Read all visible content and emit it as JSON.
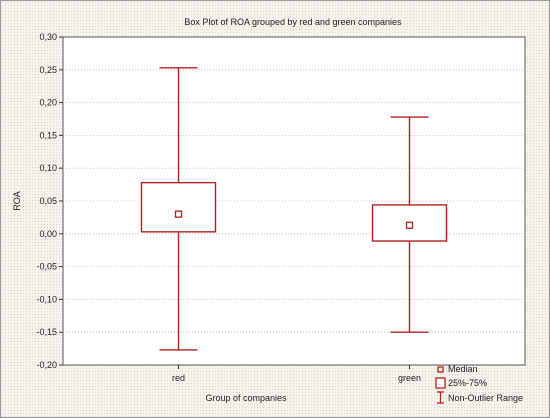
{
  "chart_data": {
    "type": "boxplot",
    "title": "Box Plot of ROA grouped by red and green companies",
    "xlabel": "Group of companies",
    "ylabel": "ROA",
    "ylim": [
      -0.2,
      0.3
    ],
    "yticks": [
      "0,30",
      "0,25",
      "0,20",
      "0,15",
      "0,10",
      "0,05",
      "0,00",
      "-0,05",
      "-0,10",
      "-0,15",
      "-0,20"
    ],
    "ytick_values": [
      0.3,
      0.25,
      0.2,
      0.15,
      0.1,
      0.05,
      0.0,
      -0.05,
      -0.1,
      -0.15,
      -0.2
    ],
    "categories": [
      "red",
      "green"
    ],
    "boxes": [
      {
        "category": "red",
        "median": 0.03,
        "q1": 0.003,
        "q3": 0.078,
        "whisker_low": -0.177,
        "whisker_high": 0.253
      },
      {
        "category": "green",
        "median": 0.013,
        "q1": -0.011,
        "q3": 0.044,
        "whisker_low": -0.15,
        "whisker_high": 0.178
      }
    ],
    "legend": [
      "Median",
      "25%-75%",
      "Non-Outlier Range"
    ],
    "color": "#b22222",
    "grid": true
  }
}
